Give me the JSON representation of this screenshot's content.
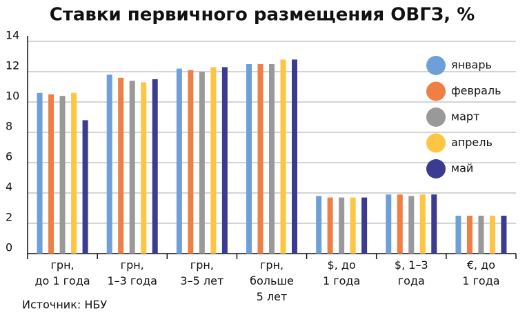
{
  "chart_data": {
    "type": "bar",
    "title": "Ставки первичного размещения ОВГЗ, %",
    "categories": [
      "грн,\nдо 1 года",
      "грн,\n1–3 года",
      "грн,\n3–5 лет",
      "грн,\nбольше\n5 лет",
      "$, до\n1 года",
      "$, 1–3\nгода",
      "€, до\n1 года"
    ],
    "series": [
      {
        "name": "январь",
        "color": "#6f9fd8",
        "values": [
          10.6,
          11.8,
          12.2,
          12.5,
          3.8,
          3.9,
          2.5
        ]
      },
      {
        "name": "февраль",
        "color": "#ef7f45",
        "values": [
          10.5,
          11.6,
          12.1,
          12.5,
          3.7,
          3.9,
          2.5
        ]
      },
      {
        "name": "март",
        "color": "#999999",
        "values": [
          10.4,
          11.4,
          12.0,
          12.5,
          3.7,
          3.8,
          2.5
        ]
      },
      {
        "name": "апрель",
        "color": "#fdc543",
        "values": [
          10.6,
          11.3,
          12.3,
          12.8,
          3.7,
          3.9,
          2.5
        ]
      },
      {
        "name": "май",
        "color": "#3b3b8f",
        "values": [
          8.8,
          11.5,
          12.3,
          12.8,
          3.7,
          3.9,
          2.5
        ]
      }
    ],
    "ylim": [
      0,
      14
    ],
    "yticks": [
      0,
      2,
      4,
      6,
      8,
      10,
      12,
      14
    ],
    "grid": true,
    "legend": "right",
    "source": "Источник: НБУ"
  }
}
